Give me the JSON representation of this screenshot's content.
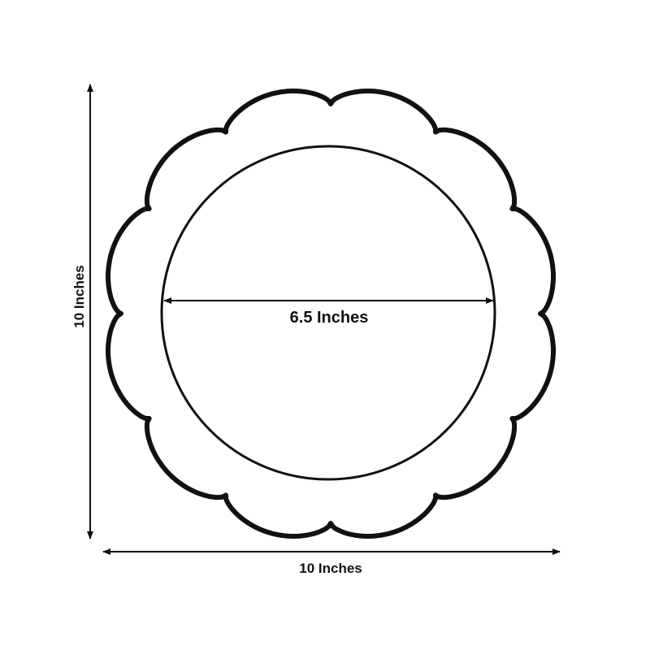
{
  "diagram": {
    "height_label": "10 Inches",
    "width_label": "10 Inches",
    "inner_diameter_label": "6.5 Inches",
    "colors": {
      "outline": "#111111",
      "background": "#ffffff"
    }
  }
}
